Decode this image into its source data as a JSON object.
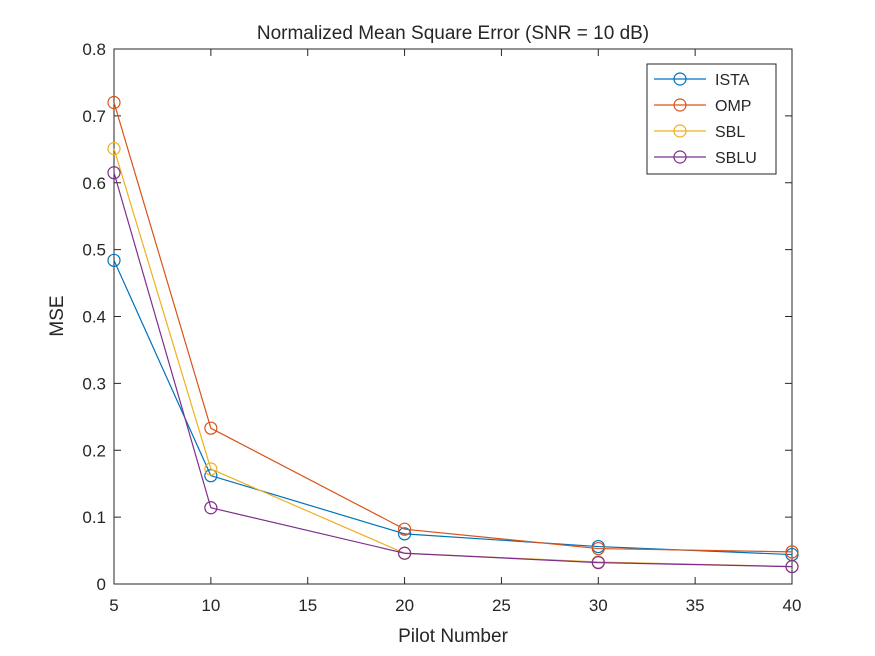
{
  "chart_data": {
    "type": "line",
    "title": "Normalized Mean Square Error (SNR = 10 dB)",
    "xlabel": "Pilot Number",
    "ylabel": "MSE",
    "xlim": [
      5,
      40
    ],
    "ylim": [
      0,
      0.8
    ],
    "xticks": [
      5,
      10,
      15,
      20,
      25,
      30,
      35,
      40
    ],
    "yticks": [
      0,
      0.1,
      0.2,
      0.3,
      0.4,
      0.5,
      0.6,
      0.7,
      0.8
    ],
    "xtick_labels": [
      "5",
      "10",
      "15",
      "20",
      "25",
      "30",
      "35",
      "40"
    ],
    "ytick_labels": [
      "0",
      "0.1",
      "0.2",
      "0.3",
      "0.4",
      "0.5",
      "0.6",
      "0.7",
      "0.8"
    ],
    "grid": false,
    "legend_position": "top-right",
    "marker": "circle",
    "x": [
      5,
      10,
      20,
      30,
      40
    ],
    "series": [
      {
        "name": "ISTA",
        "color": "#0072BD",
        "values": [
          0.484,
          0.162,
          0.075,
          0.056,
          0.044
        ]
      },
      {
        "name": "OMP",
        "color": "#D95319",
        "values": [
          0.72,
          0.233,
          0.082,
          0.053,
          0.048
        ]
      },
      {
        "name": "SBL",
        "color": "#EDB120",
        "values": [
          0.651,
          0.172,
          0.046,
          0.033,
          0.026
        ]
      },
      {
        "name": "SBLU",
        "color": "#7E2F8E",
        "values": [
          0.615,
          0.114,
          0.046,
          0.032,
          0.026
        ]
      }
    ]
  }
}
